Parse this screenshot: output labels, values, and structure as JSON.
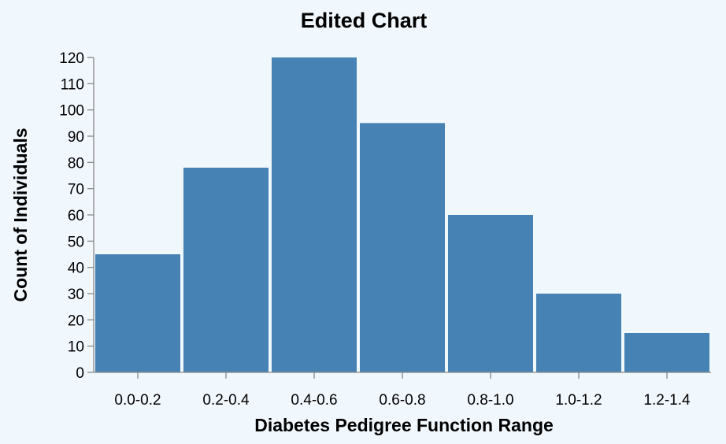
{
  "chart_data": {
    "type": "bar",
    "title": "Edited Chart",
    "xlabel": "Diabetes Pedigree Function Range",
    "ylabel": "Count of Individuals",
    "categories": [
      "0.0-0.2",
      "0.2-0.4",
      "0.4-0.6",
      "0.6-0.8",
      "0.8-1.0",
      "1.0-1.2",
      "1.2-1.4"
    ],
    "values": [
      45,
      78,
      120,
      95,
      60,
      30,
      15
    ],
    "ylim": [
      0,
      120
    ],
    "yticks": [
      0,
      10,
      20,
      30,
      40,
      50,
      60,
      70,
      80,
      90,
      100,
      110,
      120
    ],
    "grid": false,
    "colors": {
      "bar": "#4682b4",
      "background": "#f0f7fd",
      "axis": "#888888"
    }
  }
}
